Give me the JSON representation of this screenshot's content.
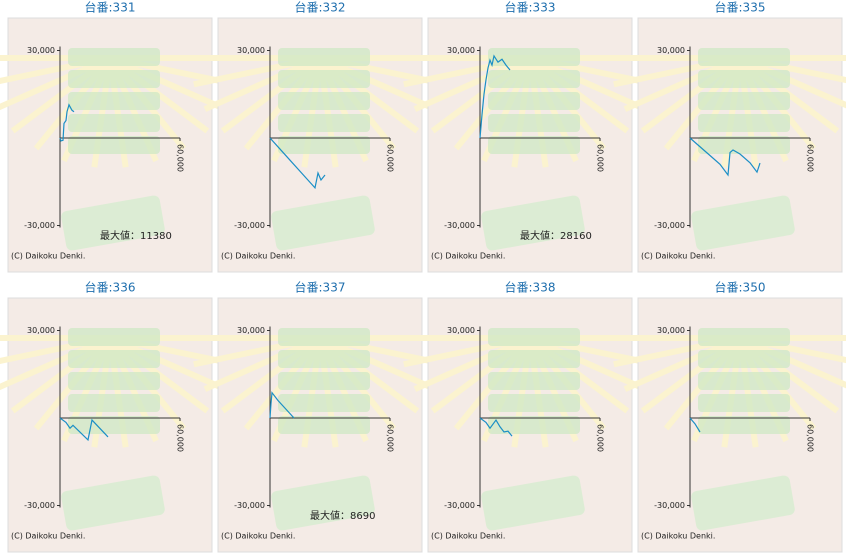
{
  "chart_data": [
    {
      "type": "line",
      "title": "台番:331",
      "color": "#1b8fc6",
      "x": [
        0,
        500,
        1500,
        2000,
        3000,
        3500,
        4500,
        6000,
        7000
      ],
      "values": [
        0,
        -1000,
        -800,
        5000,
        6000,
        9000,
        11380,
        9500,
        9000
      ],
      "xlim": [
        0,
        60000
      ],
      "ylim": [
        -30000,
        30000
      ],
      "xticks": [
        {
          "value": 60000,
          "label": "60,000"
        }
      ],
      "yticks": [
        {
          "value": 30000,
          "label": "30,000"
        },
        {
          "value": -30000,
          "label": "-30,000"
        }
      ],
      "annotation": "最大値：11380",
      "footer": "(C) Daikoku Denki."
    },
    {
      "type": "line",
      "title": "台番:332",
      "color": "#1b8fc6",
      "x": [
        0,
        5000,
        10000,
        15000,
        22500,
        24000,
        25500,
        27500
      ],
      "values": [
        0,
        -3800,
        -7600,
        -11400,
        -17100,
        -12000,
        -14400,
        -12700
      ],
      "xlim": [
        0,
        60000
      ],
      "ylim": [
        -30000,
        30000
      ],
      "xticks": [
        {
          "value": 60000,
          "label": "60,000"
        }
      ],
      "yticks": [
        {
          "value": 30000,
          "label": "30,000"
        },
        {
          "value": -30000,
          "label": "-30,000"
        }
      ],
      "footer": "(C) Daikoku Denki."
    },
    {
      "type": "line",
      "title": "台番:333",
      "color": "#1b8fc6",
      "x": [
        0,
        1000,
        2000,
        3000,
        4000,
        5000,
        6000,
        7000,
        9000,
        11000,
        13000,
        15000
      ],
      "values": [
        0,
        8000,
        15000,
        20000,
        24000,
        26700,
        25000,
        28160,
        26000,
        27000,
        25000,
        23300
      ],
      "xlim": [
        0,
        60000
      ],
      "ylim": [
        -30000,
        30000
      ],
      "xticks": [
        {
          "value": 60000,
          "label": "60,000"
        }
      ],
      "yticks": [
        {
          "value": 30000,
          "label": "30,000"
        },
        {
          "value": -30000,
          "label": "-30,000"
        }
      ],
      "annotation": "最大値：28160",
      "footer": "(C) Daikoku Denki."
    },
    {
      "type": "line",
      "title": "台番:335",
      "color": "#1b8fc6",
      "x": [
        0,
        5000,
        10000,
        15000,
        19000,
        20000,
        21500,
        25000,
        30000,
        33500,
        35000
      ],
      "values": [
        0,
        -3000,
        -6000,
        -9000,
        -12700,
        -5000,
        -4100,
        -5500,
        -8500,
        -11700,
        -8600
      ],
      "xlim": [
        0,
        60000
      ],
      "ylim": [
        -30000,
        30000
      ],
      "xticks": [
        {
          "value": 60000,
          "label": "60,000"
        }
      ],
      "yticks": [
        {
          "value": 30000,
          "label": "30,000"
        },
        {
          "value": -30000,
          "label": "-30,000"
        }
      ],
      "footer": "(C) Daikoku Denki."
    },
    {
      "type": "line",
      "title": "台番:336",
      "color": "#1b8fc6",
      "x": [
        0,
        3000,
        5000,
        6500,
        14000,
        16000,
        24000
      ],
      "values": [
        0,
        -1500,
        -3500,
        -2500,
        -7500,
        -700,
        -6500
      ],
      "xlim": [
        0,
        60000
      ],
      "ylim": [
        -30000,
        30000
      ],
      "xticks": [
        {
          "value": 60000,
          "label": "60,000"
        }
      ],
      "yticks": [
        {
          "value": 30000,
          "label": "30,000"
        },
        {
          "value": -30000,
          "label": "-30,000"
        }
      ],
      "footer": "(C) Daikoku Denki."
    },
    {
      "type": "line",
      "title": "台番:337",
      "color": "#1b8fc6",
      "x": [
        0,
        500,
        1000,
        4000,
        8000,
        12000
      ],
      "values": [
        0,
        5000,
        8690,
        6000,
        3000,
        0
      ],
      "xlim": [
        0,
        60000
      ],
      "ylim": [
        -30000,
        30000
      ],
      "xticks": [
        {
          "value": 60000,
          "label": "60,000"
        }
      ],
      "yticks": [
        {
          "value": 30000,
          "label": "30,000"
        },
        {
          "value": -30000,
          "label": "-30,000"
        }
      ],
      "annotation": "最大値：8690",
      "footer": "(C) Daikoku Denki."
    },
    {
      "type": "line",
      "title": "台番:338",
      "color": "#1b8fc6",
      "x": [
        0,
        3000,
        5000,
        8000,
        10000,
        12000,
        14000,
        16000
      ],
      "values": [
        0,
        -1500,
        -3500,
        -700,
        -3000,
        -4800,
        -4500,
        -6200
      ],
      "xlim": [
        0,
        60000
      ],
      "ylim": [
        -30000,
        30000
      ],
      "xticks": [
        {
          "value": 60000,
          "label": "60,000"
        }
      ],
      "yticks": [
        {
          "value": 30000,
          "label": "30,000"
        },
        {
          "value": -30000,
          "label": "-30,000"
        }
      ],
      "footer": "(C) Daikoku Denki."
    },
    {
      "type": "line",
      "title": "台番:350",
      "color": "#1b8fc6",
      "x": [
        0,
        2500,
        5000
      ],
      "values": [
        0,
        -2000,
        -4800
      ],
      "xlim": [
        0,
        60000
      ],
      "ylim": [
        -30000,
        30000
      ],
      "xticks": [
        {
          "value": 60000,
          "label": "60,000"
        }
      ],
      "yticks": [
        {
          "value": 30000,
          "label": "30,000"
        },
        {
          "value": -30000,
          "label": "-30,000"
        }
      ],
      "footer": "(C) Daikoku Denki."
    }
  ]
}
